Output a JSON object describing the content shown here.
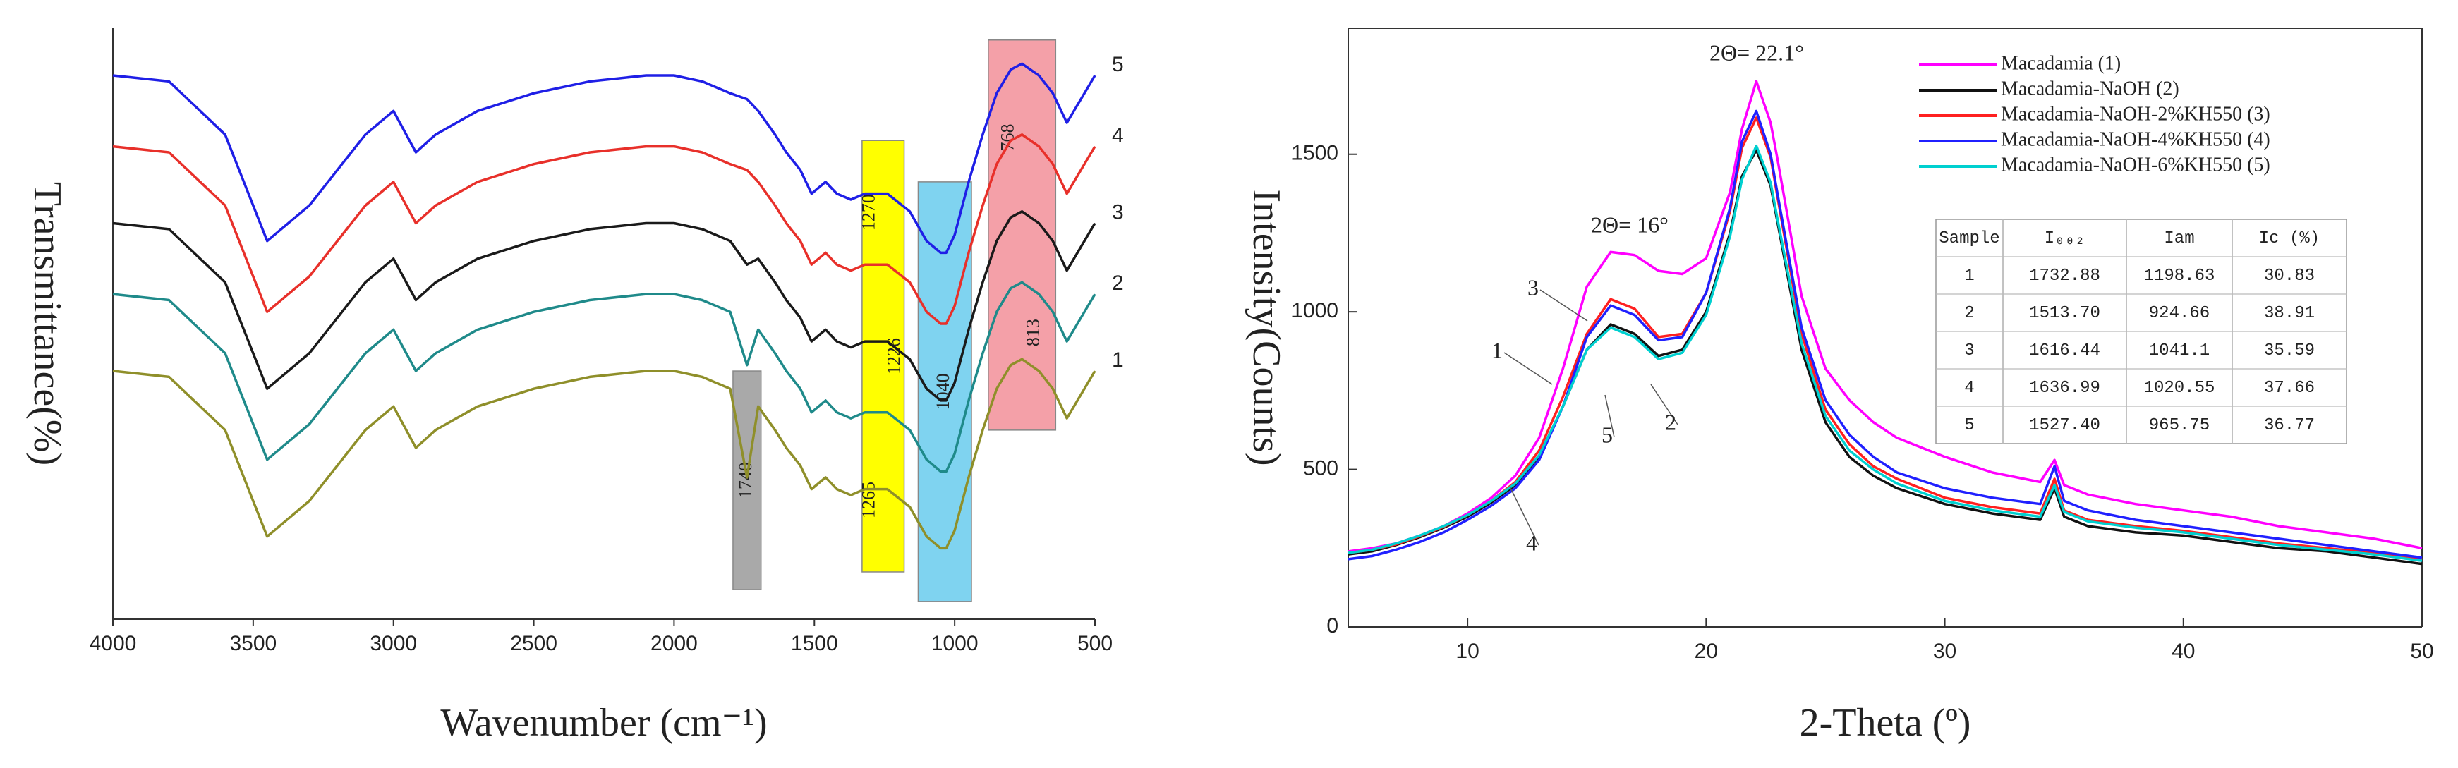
{
  "chart_data": [
    {
      "type": "line",
      "x_label": "Wavenumber (cm⁻¹)",
      "y_label": "Transmittance(%)",
      "x": [
        4000,
        3800,
        3600,
        3450,
        3300,
        3100,
        3000,
        2920,
        2850,
        2700,
        2500,
        2300,
        2100,
        2000,
        1900,
        1800,
        1740,
        1700,
        1640,
        1600,
        1550,
        1510,
        1460,
        1420,
        1370,
        1320,
        1270,
        1240,
        1160,
        1100,
        1050,
        1030,
        1000,
        950,
        900,
        850,
        800,
        760,
        700,
        650,
        600,
        550,
        500
      ],
      "xlim": [
        4000,
        500
      ],
      "xticks": [
        4000,
        3500,
        3000,
        2500,
        2000,
        1500,
        1000,
        500
      ],
      "ylim": [
        0,
        100
      ],
      "series": [
        {
          "name": "5",
          "color": "#1f1fe6",
          "values": [
            92,
            91,
            82,
            64,
            70,
            82,
            86,
            79,
            82,
            86,
            89,
            91,
            92,
            92,
            91,
            89,
            88,
            86,
            82,
            79,
            76,
            72,
            74,
            72,
            71,
            72,
            72,
            72,
            69,
            64,
            62,
            62,
            65,
            74,
            82,
            89,
            93,
            94,
            92,
            89,
            84,
            88,
            92
          ]
        },
        {
          "name": "4",
          "color": "#e8302a",
          "values": [
            80,
            79,
            70,
            52,
            58,
            70,
            74,
            67,
            70,
            74,
            77,
            79,
            80,
            80,
            79,
            77,
            76,
            74,
            70,
            67,
            64,
            60,
            62,
            60,
            59,
            60,
            60,
            60,
            57,
            52,
            50,
            50,
            53,
            62,
            70,
            77,
            81,
            82,
            80,
            77,
            72,
            76,
            80
          ]
        },
        {
          "name": "3",
          "color": "#1a1a1a",
          "values": [
            67,
            66,
            57,
            39,
            45,
            57,
            61,
            54,
            57,
            61,
            64,
            66,
            67,
            67,
            66,
            64,
            60,
            61,
            57,
            54,
            51,
            47,
            49,
            47,
            46,
            47,
            47,
            47,
            44,
            39,
            37,
            37,
            40,
            49,
            57,
            64,
            68,
            69,
            67,
            64,
            59,
            63,
            67
          ]
        },
        {
          "name": "2",
          "color": "#1f8a8a",
          "values": [
            55,
            54,
            45,
            27,
            33,
            45,
            49,
            42,
            45,
            49,
            52,
            54,
            55,
            55,
            54,
            52,
            43,
            49,
            45,
            42,
            39,
            35,
            37,
            35,
            34,
            35,
            35,
            35,
            32,
            27,
            25,
            25,
            28,
            37,
            45,
            52,
            56,
            57,
            55,
            52,
            47,
            51,
            55
          ]
        },
        {
          "name": "1",
          "color": "#8f8f2a",
          "values": [
            42,
            41,
            32,
            14,
            20,
            32,
            36,
            29,
            32,
            36,
            39,
            41,
            42,
            42,
            41,
            39,
            24,
            36,
            32,
            29,
            26,
            22,
            24,
            22,
            21,
            22,
            22,
            22,
            19,
            14,
            12,
            12,
            15,
            24,
            32,
            39,
            43,
            44,
            42,
            39,
            34,
            38,
            42
          ]
        }
      ],
      "bands": [
        {
          "range": [
            1790,
            1690
          ],
          "color": "#a9a9a9",
          "labels": [
            "1740"
          ]
        },
        {
          "range": [
            1330,
            1180
          ],
          "color": "#ffff00",
          "labels": [
            "1270",
            "1226",
            "1265"
          ]
        },
        {
          "range": [
            1130,
            940
          ],
          "color": "#7fd3f0",
          "labels": [
            "1040"
          ]
        },
        {
          "range": [
            880,
            640
          ],
          "color": "#f4a0a8",
          "labels": [
            "768",
            "813"
          ]
        }
      ]
    },
    {
      "type": "line",
      "x_label": "2-Theta (º)",
      "y_label": "Intensity(Counts)",
      "x": [
        5,
        6,
        7,
        8,
        9,
        10,
        11,
        12,
        13,
        14,
        15,
        16,
        17,
        18,
        19,
        20,
        21,
        21.5,
        22.1,
        22.7,
        23,
        24,
        25,
        26,
        27,
        28,
        30,
        32,
        34,
        34.6,
        35,
        36,
        38,
        40,
        42,
        44,
        46,
        48,
        50
      ],
      "xlim": [
        5,
        50
      ],
      "xticks": [
        10,
        20,
        30,
        40,
        50
      ],
      "ylim": [
        0,
        1900
      ],
      "yticks": [
        0,
        500,
        1000,
        1500
      ],
      "legend": "upper right",
      "series": [
        {
          "name": "Macadamia (1)",
          "color": "#ff00ff",
          "values": [
            240,
            250,
            265,
            290,
            320,
            360,
            410,
            480,
            600,
            820,
            1080,
            1190,
            1180,
            1130,
            1120,
            1170,
            1380,
            1580,
            1732,
            1600,
            1480,
            1050,
            820,
            720,
            650,
            600,
            540,
            490,
            460,
            530,
            450,
            420,
            390,
            370,
            350,
            320,
            300,
            280,
            250
          ]
        },
        {
          "name": "Macadamia-NaOH (2)",
          "color": "#111111",
          "values": [
            230,
            240,
            260,
            285,
            315,
            350,
            395,
            450,
            540,
            700,
            880,
            960,
            930,
            860,
            880,
            1000,
            1250,
            1430,
            1513,
            1400,
            1280,
            880,
            650,
            540,
            480,
            440,
            390,
            360,
            340,
            440,
            350,
            320,
            300,
            290,
            270,
            250,
            240,
            220,
            200
          ]
        },
        {
          "name": "Macadamia-NaOH-2%KH550 (3)",
          "color": "#ff2020",
          "values": [
            235,
            245,
            262,
            288,
            318,
            355,
            400,
            460,
            560,
            730,
            930,
            1040,
            1010,
            920,
            930,
            1060,
            1320,
            1520,
            1616,
            1490,
            1360,
            930,
            690,
            580,
            510,
            470,
            410,
            380,
            360,
            470,
            370,
            340,
            320,
            305,
            285,
            265,
            250,
            235,
            215
          ]
        },
        {
          "name": "Macadamia-NaOH-4%KH550 (4)",
          "color": "#2020ff",
          "values": [
            215,
            225,
            245,
            270,
            300,
            340,
            385,
            440,
            530,
            700,
            920,
            1020,
            990,
            910,
            920,
            1060,
            1330,
            1540,
            1637,
            1500,
            1370,
            950,
            720,
            610,
            540,
            490,
            440,
            410,
            390,
            510,
            400,
            370,
            340,
            320,
            300,
            280,
            260,
            240,
            220
          ]
        },
        {
          "name": "Macadamia-NaOH-6%KH550 (5)",
          "color": "#00d0d0",
          "values": [
            235,
            245,
            265,
            290,
            320,
            355,
            400,
            455,
            545,
            700,
            880,
            950,
            920,
            850,
            870,
            990,
            1240,
            1420,
            1527,
            1410,
            1290,
            900,
            670,
            560,
            500,
            455,
            400,
            370,
            350,
            450,
            365,
            335,
            315,
            300,
            280,
            260,
            245,
            230,
            210
          ]
        }
      ],
      "annotations": [
        "2Θ= 22.1°",
        "2Θ= 16°"
      ],
      "curve_labels": [
        "3",
        "1",
        "5",
        "2",
        "4"
      ],
      "table": {
        "header": [
          "Sample",
          "I₀₀₂",
          "Iam",
          "Ic (%)"
        ],
        "rows": [
          [
            "1",
            "1732.88",
            "1198.63",
            "30.83"
          ],
          [
            "2",
            "1513.70",
            "924.66",
            "38.91"
          ],
          [
            "3",
            "1616.44",
            "1041.1",
            "35.59"
          ],
          [
            "4",
            "1636.99",
            "1020.55",
            "37.66"
          ],
          [
            "5",
            "1527.40",
            "965.75",
            "36.77"
          ]
        ]
      }
    }
  ]
}
